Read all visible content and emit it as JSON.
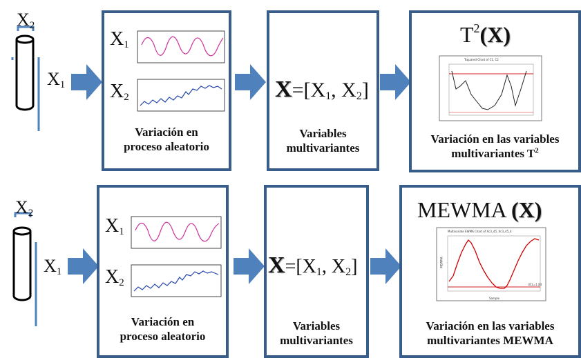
{
  "row1": {
    "x2_label": "X",
    "x2_sub": "2",
    "x1_label": "X",
    "x1_sub": "1",
    "box1_y1_label": "X",
    "box1_y1_sub": "1",
    "box1_y2_label": "X",
    "box1_y2_sub": "2",
    "box1_caption_line1": "Variación en",
    "box1_caption_line2": "proceso aleatorio",
    "formula_x": "X",
    "formula_eq": "=[X",
    "formula_s1": "1",
    "formula_mid": ", X",
    "formula_s2": "2",
    "formula_end": "]",
    "box2_caption_line1": "Variables",
    "box2_caption_line2": "multivariantes",
    "box3_title_prefix": "T",
    "box3_title_sup": "2",
    "box3_title_arg": "(X)",
    "box3_chart_title": "Tsquared Chart of C1, C2",
    "box3_caption_line1": "Variación en las variables",
    "box3_caption_line2": "multivariantes T",
    "box3_caption_sup": "2"
  },
  "row2": {
    "x2_label": "X",
    "x2_sub": "2",
    "x1_label": "X",
    "x1_sub": "1",
    "box1_y1_label": "X",
    "box1_y1_sub": "1",
    "box1_y2_label": "X",
    "box1_y2_sub": "2",
    "box1_caption_line1": "Variación en",
    "box1_caption_line2": "proceso aleatorio",
    "formula_x": "X",
    "formula_eq": "=[X",
    "formula_s1": "1",
    "formula_mid": ", X",
    "formula_s2": "2",
    "formula_end": "]",
    "box2_caption_line1": "Variables",
    "box2_caption_line2": "multivariantes",
    "box3_title_prefix": "MEWMA ",
    "box3_title_arg": "(X)",
    "box3_chart_title": "Multivariate EWMA Chart of Xc3_45, Xc3_45_4",
    "box3_xlabel": "Sample",
    "box3_ylabel": "MEWMA",
    "box3_ucl": "UCL=1.84",
    "box3_caption_line1": "Variación en las variables",
    "box3_caption_line2": "multivariantes MEWMA"
  },
  "colors": {
    "box_border": "#385D8A",
    "arrow": "#4F81BD",
    "series_pink": "#CC3399",
    "series_blue": "#2244AA",
    "limit_red": "#D22222",
    "mewma_red": "#CC0000",
    "cylinder_bracket": "#4F81BD"
  }
}
